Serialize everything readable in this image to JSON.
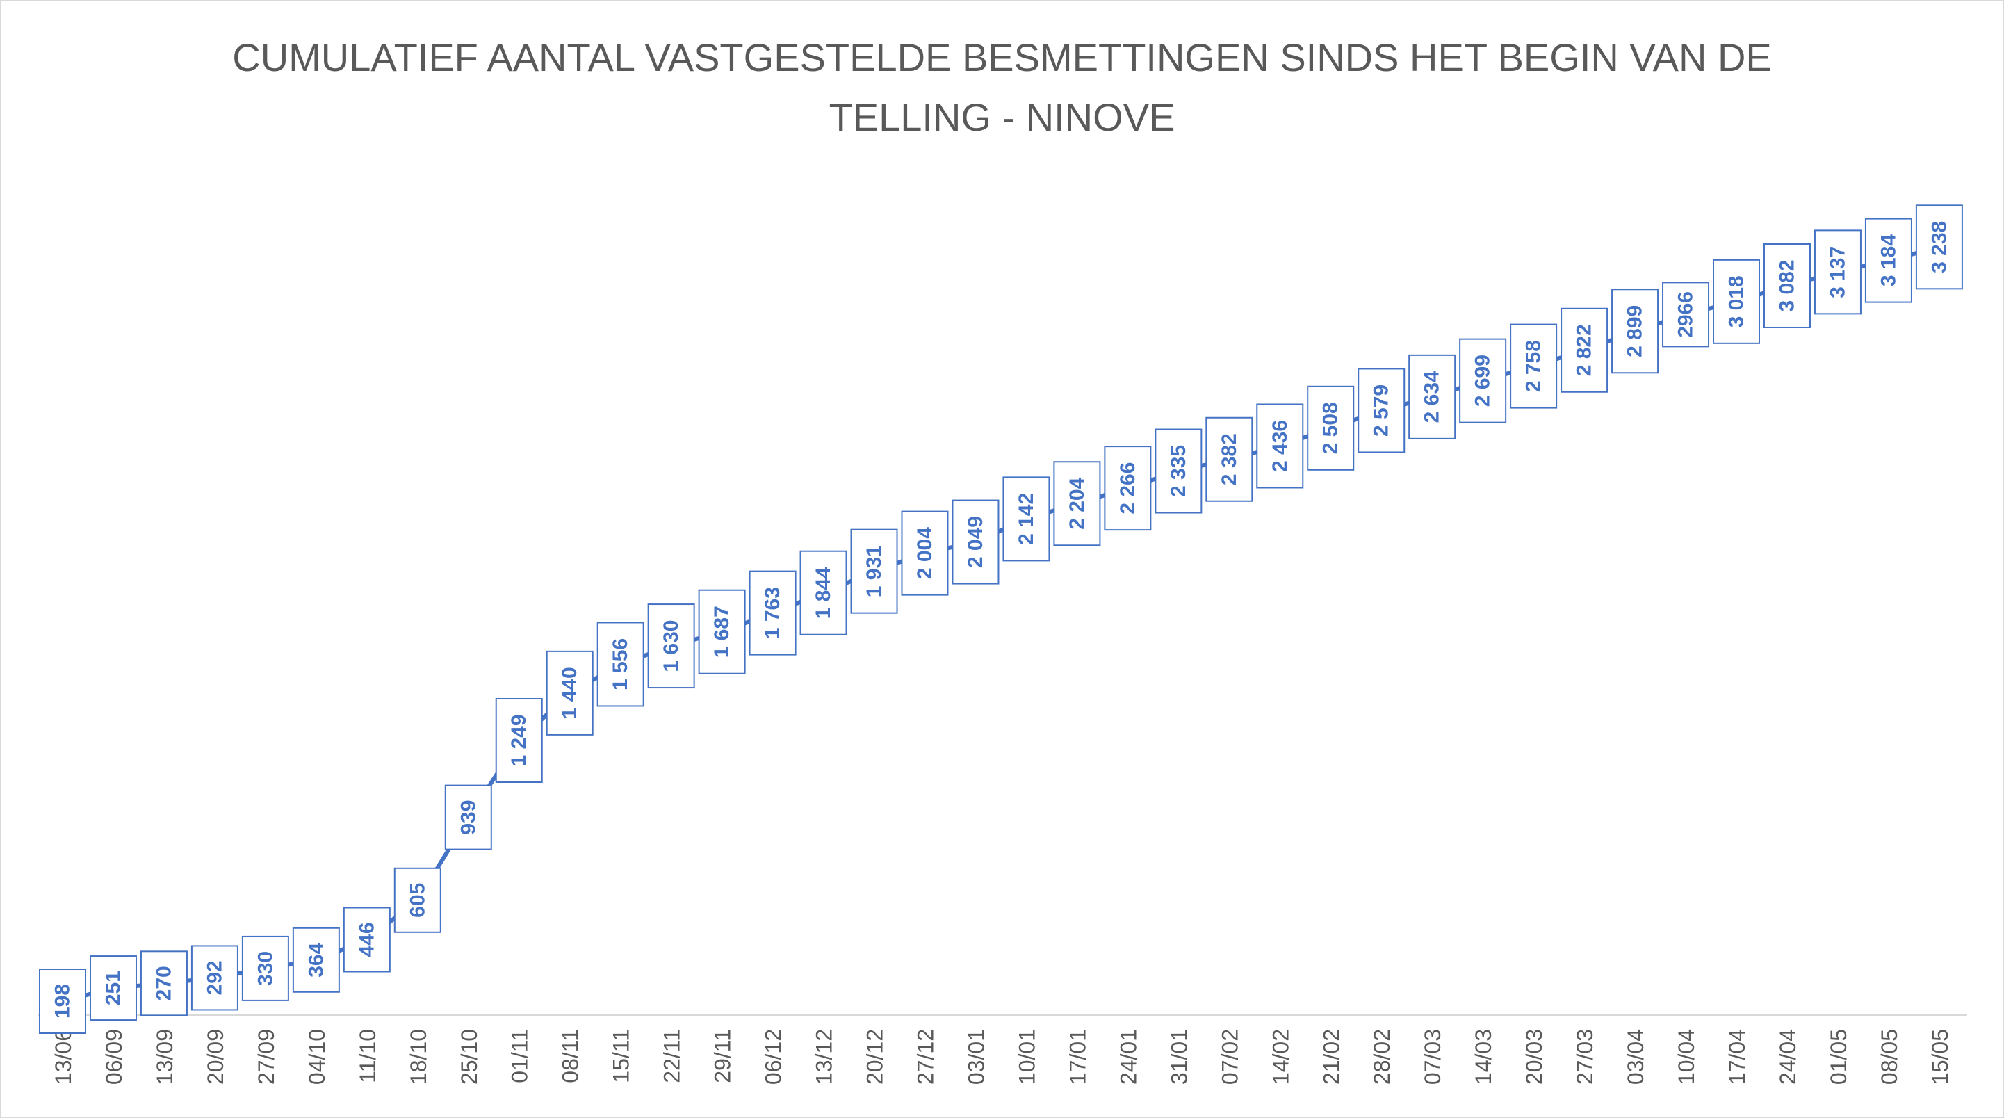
{
  "chart_data": {
    "type": "line",
    "title_line1": "CUMULATIEF AANTAL VASTGESTELDE BESMETTINGEN SINDS HET BEGIN VAN DE",
    "title_line2": "TELLING - NINOVE",
    "xlabel": "",
    "ylabel": "",
    "categories": [
      "13/06",
      "06/09",
      "13/09",
      "20/09",
      "27/09",
      "04/10",
      "11/10",
      "18/10",
      "25/10",
      "01/11",
      "08/11",
      "15/11",
      "22/11",
      "29/11",
      "06/12",
      "13/12",
      "20/12",
      "27/12",
      "03/01",
      "10/01",
      "17/01",
      "24/01",
      "31/01",
      "07/02",
      "14/02",
      "21/02",
      "28/02",
      "07/03",
      "14/03",
      "20/03",
      "27/03",
      "03/04",
      "10/04",
      "17/04",
      "24/04",
      "01/05",
      "08/05",
      "15/05"
    ],
    "values": [
      198,
      251,
      270,
      292,
      330,
      364,
      446,
      605,
      939,
      1249,
      1440,
      1556,
      1630,
      1687,
      1763,
      1844,
      1931,
      2004,
      2049,
      2142,
      2204,
      2266,
      2335,
      2382,
      2436,
      2508,
      2579,
      2634,
      2699,
      2758,
      2822,
      2899,
      2966,
      3018,
      3082,
      3137,
      3184,
      3238
    ],
    "data_labels": [
      "198",
      "251",
      "270",
      "292",
      "330",
      "364",
      "446",
      "605",
      "939",
      "1 249",
      "1 440",
      "1 556",
      "1 630",
      "1 687",
      "1 763",
      "1 844",
      "1 931",
      "2 004",
      "2 049",
      "2 142",
      "2 204",
      "2 266",
      "2 335",
      "2 382",
      "2 436",
      "2 508",
      "2 579",
      "2 634",
      "2 699",
      "2 758",
      "2 822",
      "2 899",
      "2966",
      "3 018",
      "3 082",
      "3 137",
      "3 184",
      "3 238"
    ],
    "grid": false,
    "legend": "none",
    "line_color": "#4472c4",
    "label_box_color": "#4472c4"
  }
}
